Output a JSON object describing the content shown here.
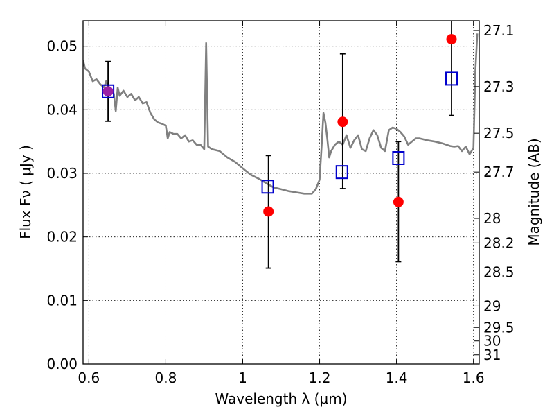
{
  "chart_data": {
    "type": "scatter",
    "title": "",
    "xlabel": "Wavelength  λ (μm)",
    "ylabel": "Flux  Fν  ( μJy )",
    "y2label": "Magnitude (AB)",
    "xlim": [
      0.585,
      1.615
    ],
    "ylim": [
      0.0,
      0.054
    ],
    "x_ticks": [
      0.6,
      0.8,
      1.0,
      1.2,
      1.4,
      1.6
    ],
    "x_tick_labels": [
      "0.6",
      "0.8",
      "1",
      "1.2",
      "1.4",
      "1.6"
    ],
    "y_ticks": [
      0.0,
      0.01,
      0.02,
      0.03,
      0.04,
      0.05
    ],
    "y_tick_labels": [
      "0.00",
      "0.01",
      "0.02",
      "0.03",
      "0.04",
      "0.05"
    ],
    "y2_tick_labels": [
      "27.1",
      "27.3",
      "27.5",
      "27.7",
      "28",
      "28.2",
      "28.5",
      "29",
      "29.5",
      "30",
      "31"
    ],
    "y2_ab_zeropoint": 23.9,
    "grid": true,
    "grid_style": "dotted",
    "colors": {
      "observed": "#ff0000",
      "model_box": "#0000cc",
      "overlap": "#9b1fa5",
      "template": "#808080",
      "errorbar": "#000000"
    },
    "series": [
      {
        "marker": "square",
        "x": [
          0.65,
          1.065,
          1.258,
          1.405,
          1.543
        ],
        "y": [
          0.0429,
          0.0279,
          0.0302,
          0.0324,
          0.0449
        ]
      },
      {
        "marker": "circle",
        "x": [
          0.65,
          1.067,
          1.26,
          1.405,
          1.543
        ],
        "y": [
          0.0429,
          0.024,
          0.0381,
          0.0255,
          0.0511
        ],
        "yerr_low": [
          0.0382,
          0.0151,
          0.0276,
          0.0161,
          0.0391
        ],
        "yerr_high": [
          0.0476,
          0.0328,
          0.0488,
          0.035,
          0.0541
        ]
      },
      {
        "line": true,
        "x": [
          0.585,
          0.59,
          0.6,
          0.61,
          0.62,
          0.63,
          0.64,
          0.645,
          0.655,
          0.665,
          0.67,
          0.675,
          0.68,
          0.69,
          0.7,
          0.71,
          0.72,
          0.73,
          0.74,
          0.75,
          0.76,
          0.77,
          0.78,
          0.79,
          0.8,
          0.805,
          0.81,
          0.82,
          0.83,
          0.84,
          0.85,
          0.86,
          0.87,
          0.88,
          0.89,
          0.9,
          0.905,
          0.91,
          0.915,
          0.92,
          0.94,
          0.96,
          0.98,
          1.0,
          1.02,
          1.04,
          1.06,
          1.08,
          1.1,
          1.12,
          1.14,
          1.16,
          1.18,
          1.19,
          1.2,
          1.205,
          1.21,
          1.215,
          1.22,
          1.225,
          1.23,
          1.24,
          1.25,
          1.26,
          1.27,
          1.28,
          1.29,
          1.3,
          1.31,
          1.32,
          1.33,
          1.34,
          1.35,
          1.36,
          1.37,
          1.38,
          1.39,
          1.4,
          1.41,
          1.42,
          1.43,
          1.44,
          1.45,
          1.46,
          1.48,
          1.5,
          1.52,
          1.54,
          1.55,
          1.56,
          1.57,
          1.58,
          1.59,
          1.6,
          1.605,
          1.61
        ],
        "y": [
          0.0478,
          0.0465,
          0.046,
          0.0445,
          0.0448,
          0.044,
          0.0435,
          0.0445,
          0.043,
          0.0425,
          0.0398,
          0.0435,
          0.0422,
          0.043,
          0.042,
          0.0425,
          0.0415,
          0.042,
          0.041,
          0.0412,
          0.0395,
          0.0385,
          0.038,
          0.0378,
          0.0375,
          0.0355,
          0.0365,
          0.0362,
          0.0362,
          0.0355,
          0.036,
          0.035,
          0.0352,
          0.0345,
          0.0345,
          0.0338,
          0.0505,
          0.0342,
          0.034,
          0.0338,
          0.0335,
          0.0325,
          0.0318,
          0.0308,
          0.0298,
          0.0292,
          0.0285,
          0.0278,
          0.0275,
          0.0272,
          0.027,
          0.0268,
          0.0268,
          0.0275,
          0.029,
          0.034,
          0.0395,
          0.038,
          0.0355,
          0.0325,
          0.0335,
          0.0345,
          0.035,
          0.0345,
          0.036,
          0.034,
          0.0352,
          0.036,
          0.0338,
          0.0335,
          0.0355,
          0.0368,
          0.036,
          0.034,
          0.0335,
          0.0368,
          0.0372,
          0.037,
          0.0365,
          0.0358,
          0.0345,
          0.035,
          0.0355,
          0.0355,
          0.0352,
          0.035,
          0.0347,
          0.0343,
          0.0342,
          0.0343,
          0.0335,
          0.0342,
          0.033,
          0.034,
          0.046,
          0.052
        ]
      }
    ]
  }
}
